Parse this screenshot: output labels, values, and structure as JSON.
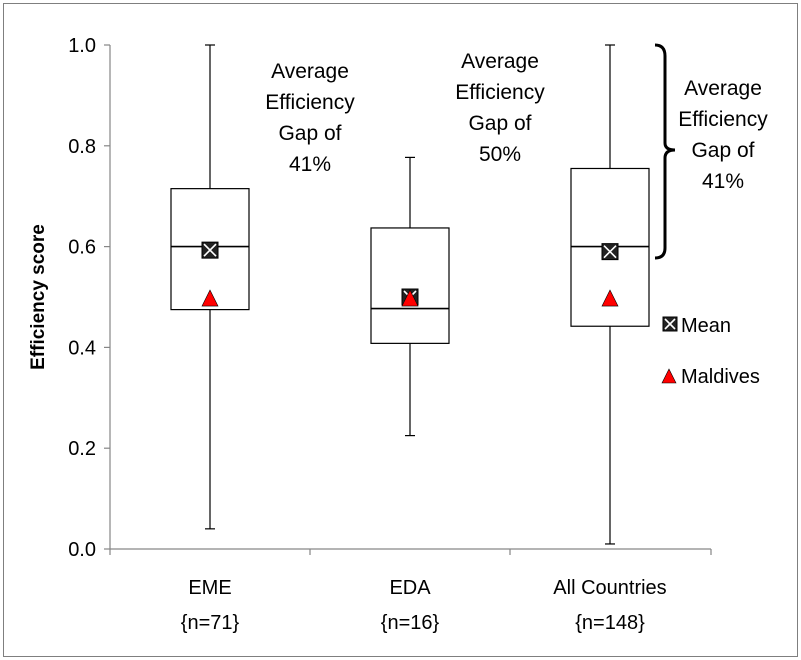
{
  "chart_data": {
    "type": "box",
    "ylabel": "Efficiency score",
    "ylim": [
      0,
      1
    ],
    "y_ticks": [
      "0.0",
      "0.2",
      "0.4",
      "0.6",
      "0.8",
      "1.0"
    ],
    "y_tick_values": [
      0,
      0.2,
      0.4,
      0.6,
      0.8,
      1.0
    ],
    "categories": [
      {
        "name": "EME",
        "n": "{n=71}"
      },
      {
        "name": "EDA",
        "n": "{n=16}"
      },
      {
        "name": "All Countries",
        "n": "{n=148}"
      }
    ],
    "boxes": [
      {
        "min": 0.04,
        "q1": 0.475,
        "median": 0.6,
        "q3": 0.715,
        "max": 1.0,
        "mean": 0.593,
        "maldives": 0.496
      },
      {
        "min": 0.225,
        "q1": 0.408,
        "median": 0.477,
        "q3": 0.637,
        "max": 0.777,
        "mean": 0.5,
        "maldives": 0.496
      },
      {
        "min": 0.01,
        "q1": 0.442,
        "median": 0.6,
        "q3": 0.755,
        "max": 1.0,
        "mean": 0.59,
        "maldives": 0.496
      }
    ],
    "annotations": [
      {
        "lines": [
          "Average",
          "Efficiency",
          "Gap of",
          "41%"
        ]
      },
      {
        "lines": [
          "Average",
          "Efficiency",
          "Gap of",
          "50%"
        ]
      },
      {
        "lines": [
          "Average",
          "Efficiency",
          "Gap of",
          "41%"
        ]
      }
    ],
    "legend": [
      {
        "label": "Mean",
        "marker": "square-x",
        "color": "#000000"
      },
      {
        "label": "Maldives",
        "marker": "triangle",
        "color": "#ff0000"
      }
    ],
    "legend_position": "right",
    "grid": false
  }
}
